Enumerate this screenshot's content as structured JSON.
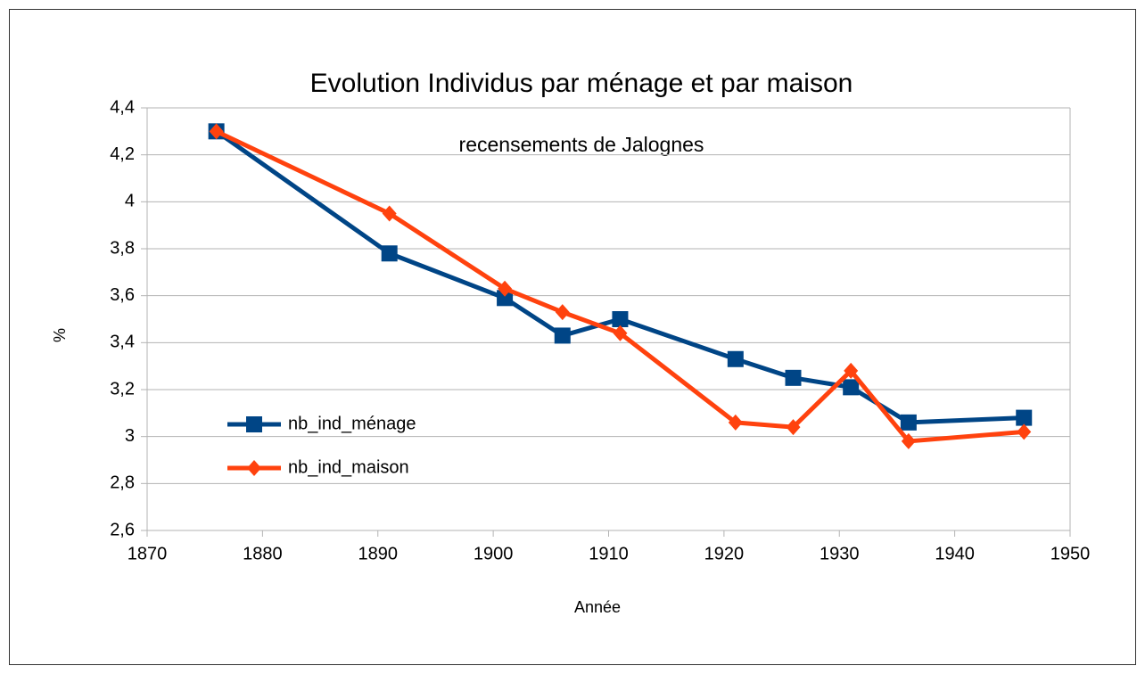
{
  "chart_data": {
    "type": "line",
    "title": "Evolution Individus par ménage et par maison",
    "subtitle": "recensements de Jalognes",
    "xlabel": "Année",
    "ylabel": "%",
    "x": [
      1876,
      1891,
      1901,
      1906,
      1911,
      1921,
      1926,
      1931,
      1936,
      1946
    ],
    "series": [
      {
        "name": "nb_ind_ménage",
        "color": "#004586",
        "marker": "square",
        "values": [
          4.3,
          3.78,
          3.59,
          3.43,
          3.5,
          3.33,
          3.25,
          3.21,
          3.06,
          3.08
        ]
      },
      {
        "name": "nb_ind_maison",
        "color": "#ff420e",
        "marker": "diamond",
        "values": [
          4.3,
          3.95,
          3.63,
          3.53,
          3.44,
          3.06,
          3.04,
          3.28,
          2.98,
          3.02
        ]
      }
    ],
    "xlim": [
      1870,
      1950
    ],
    "xticks": [
      1870,
      1880,
      1890,
      1900,
      1910,
      1920,
      1930,
      1940,
      1950
    ],
    "ylim": [
      2.6,
      4.4
    ],
    "yticks": [
      {
        "value": 2.6,
        "label": "2,6"
      },
      {
        "value": 2.8,
        "label": "2,8"
      },
      3,
      {
        "value": 3.2,
        "label": "3,2"
      },
      {
        "value": 3.4,
        "label": "3,4"
      },
      {
        "value": 3.6,
        "label": "3,6"
      },
      {
        "value": 3.8,
        "label": "3,8"
      },
      4,
      {
        "value": 4.2,
        "label": "4,2"
      },
      {
        "value": 4.4,
        "label": "4,4"
      }
    ],
    "grid": true,
    "legend": "left"
  }
}
